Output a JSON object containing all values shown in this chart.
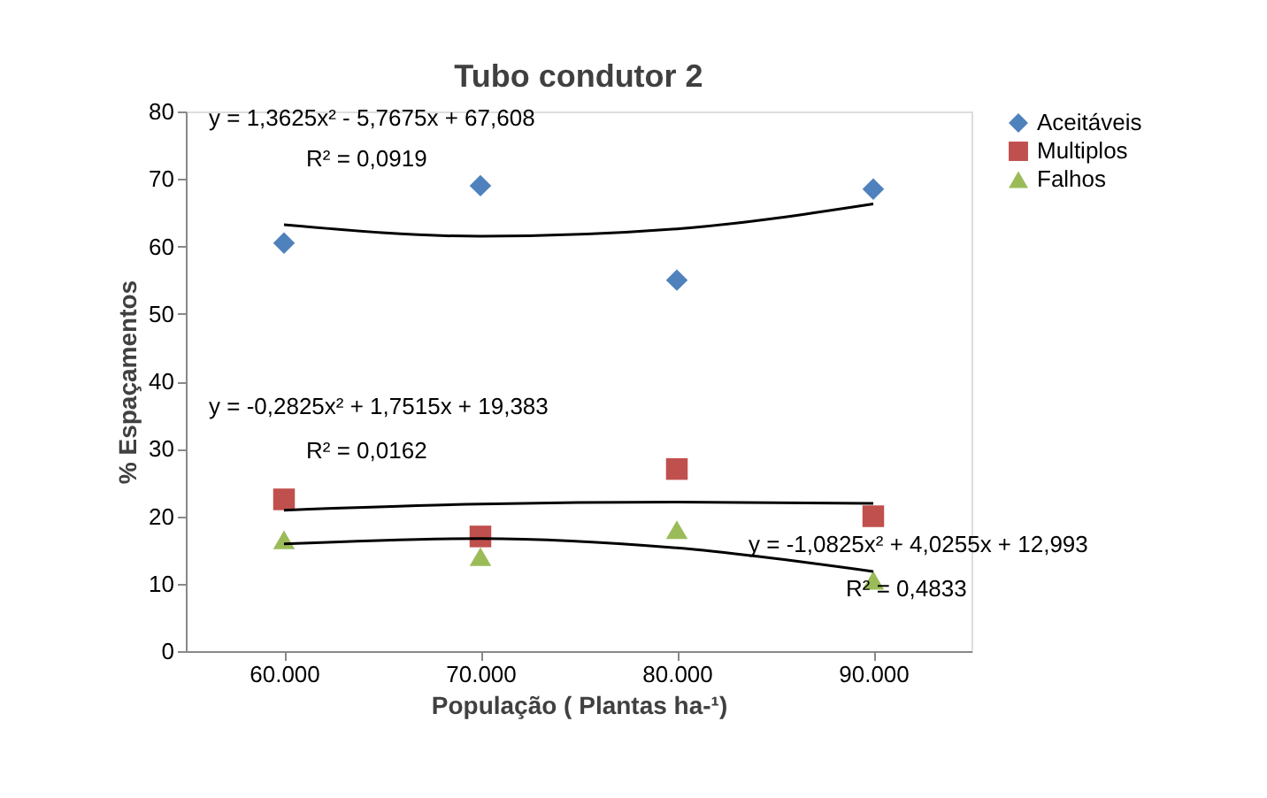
{
  "chart_data": {
    "type": "scatter",
    "title": "Tubo condutor 2",
    "xlabel": "População ( Plantas ha-¹)",
    "ylabel": "% Espaçamentos",
    "categories": [
      "60.000",
      "70.000",
      "80.000",
      "90.000"
    ],
    "series": [
      {
        "name": "Aceitáveis",
        "color": "#4f81bd",
        "marker": "diamond",
        "values": [
          60.5,
          69,
          55,
          68.5
        ]
      },
      {
        "name": "Multiplos",
        "color": "#c0504d",
        "marker": "square",
        "values": [
          22.5,
          17,
          27,
          20
        ]
      },
      {
        "name": "Falhos",
        "color": "#9bbb59",
        "marker": "triangle",
        "values": [
          16.5,
          14,
          18,
          10.5
        ]
      },
      {
        "type": "line",
        "color": "#000000",
        "values": [
          63.2,
          61.5,
          62.6,
          66.3
        ]
      },
      {
        "type": "line",
        "color": "#000000",
        "values": [
          20.9,
          21.8,
          22.1,
          21.9
        ]
      },
      {
        "type": "line",
        "color": "#000000",
        "values": [
          15.9,
          16.7,
          15.3,
          11.8
        ]
      }
    ],
    "ylim": [
      0,
      80
    ],
    "yticks": [
      0,
      10,
      20,
      30,
      40,
      50,
      60,
      70,
      80
    ],
    "grid": false,
    "legend": "right",
    "annotations": [
      "y = 1,3625x² - 5,7675x + 67,608",
      "R² = 0,0919",
      "y = -0,2825x² + 1,7515x + 19,383",
      "R² = 0,0162",
      "y = -1,0825x² + 4,0255x + 12,993",
      "R² = 0,4833"
    ]
  }
}
